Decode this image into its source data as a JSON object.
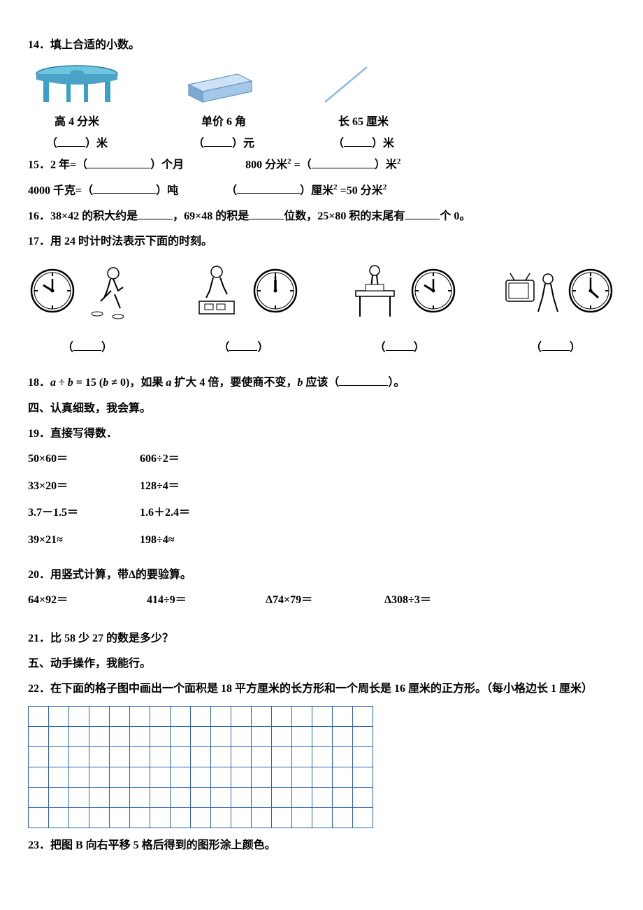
{
  "q14": {
    "title": "14．填上合适的小数。",
    "items": [
      {
        "caption": "高 4 分米",
        "unit": "（___）米"
      },
      {
        "caption": "单价 6 角",
        "unit": "（___）元"
      },
      {
        "caption": "长 65 厘米",
        "unit": "（___）米"
      }
    ]
  },
  "q15": {
    "prefix": "15．",
    "parts": [
      "2 年=（_________）个月",
      "800 分米² =（_________）米²",
      "4000 千克=（_________）吨",
      "（_________）厘米² =50 分米²"
    ]
  },
  "q16": "16．38×42 的积大约是_____，69×48 的积是_____位数，25×80 积的末尾有_____个 0。",
  "q17": {
    "title": "17．用 24 时计时法表示下面的时刻。",
    "clocks": [
      {
        "hour": 8,
        "minute": 0
      },
      {
        "hour": 12,
        "minute": 0
      },
      {
        "hour": 8,
        "minute": 0
      },
      {
        "hour": 5,
        "minute": 0
      }
    ]
  },
  "q18": "18．a ÷ b = 15 (b ≠ 0)，如果 a 扩大 4 倍，要使商不变，b 应该（________）。",
  "section4": "四、认真细致，我会算。",
  "q19": {
    "title": "19．直接写得数．",
    "rows": [
      [
        "50×60＝",
        "606÷2＝"
      ],
      [
        "33×20＝",
        "128÷4＝"
      ],
      [
        "3.7－1.5＝",
        "1.6＋2.4＝"
      ],
      [
        "39×21≈",
        "198÷4≈"
      ]
    ]
  },
  "q20": {
    "title": "20．用竖式计算，带Δ的要验算。",
    "items": [
      "64×92＝",
      "414÷9＝",
      "Δ74×79＝",
      "Δ308÷3＝"
    ]
  },
  "q21": "21．比 58 少 27 的数是多少？",
  "section5": "五、动手操作，我能行。",
  "q22": {
    "title": "22．在下面的格子图中画出一个面积是 18 平方厘米的长方形和一个周长是 16 厘米的正方形。（每小格边长 1 厘米）",
    "grid": {
      "rows": 6,
      "cols": 17,
      "cell_size": 26,
      "border_color": "#2961b3"
    }
  },
  "q23": "23．把图 B 向右平移 5 格后得到的图形涂上颜色。",
  "colors": {
    "table_top": "#6ec5e0",
    "table_leg": "#3a9fc9",
    "eraser_top": "#a4c8e8",
    "eraser_side": "#7ba9d4",
    "needle": "#8fb7ea",
    "grid_border": "#2961b3"
  }
}
